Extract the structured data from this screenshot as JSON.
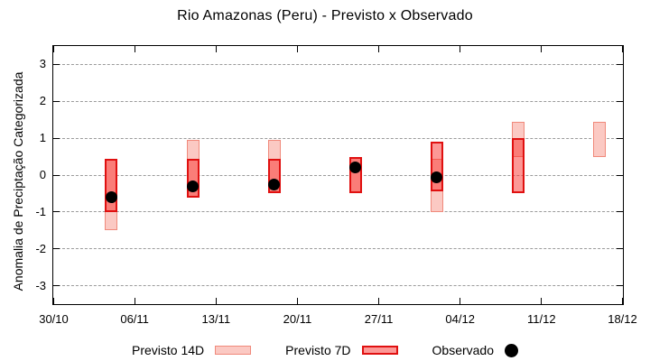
{
  "title": "Rio Amazonas (Peru) - Previsto x Observado",
  "chart_data": {
    "type": "bar",
    "subtype": "range-bars-with-scatter-overlay",
    "title": "Rio Amazonas (Peru) - Previsto x Observado",
    "xlabel": "",
    "ylabel": "Anomalia de Preciptação Categorizada",
    "ylim": [
      -3.5,
      3.5
    ],
    "ytick_values": [
      3,
      2,
      1,
      0,
      -1,
      -2,
      -3
    ],
    "ytick_labels": [
      "3",
      "2",
      "1",
      "0",
      "-1",
      "-2",
      "-3"
    ],
    "xtick_labels": [
      "30/10",
      "06/11",
      "13/11",
      "20/11",
      "27/11",
      "04/12",
      "11/12",
      "18/12"
    ],
    "xtick_days": [
      0,
      7,
      14,
      21,
      28,
      35,
      42,
      49
    ],
    "x_span_days": 49,
    "grid": "horizontal-dashed",
    "grid_color": "#9a9a9a",
    "axis_color": "#000000",
    "legend_position": "bottom-center",
    "series": [
      {
        "name": "Previsto 14D",
        "type": "range-bar",
        "fill_color": "#fbc9c3",
        "border_color": "#f0897b",
        "points": [
          {
            "date": "04/11",
            "day": 5,
            "hi": 0.45,
            "lo": -1.5
          },
          {
            "date": "11/11",
            "day": 12,
            "hi": 0.95,
            "lo": -0.6
          },
          {
            "date": "18/11",
            "day": 19,
            "hi": 0.95,
            "lo": -0.5
          },
          {
            "date": "25/11",
            "day": 26,
            "hi": 0.5,
            "lo": -0.5
          },
          {
            "date": "02/12",
            "day": 33,
            "hi": 0.45,
            "lo": -1.0
          },
          {
            "date": "09/12",
            "day": 40,
            "hi": 1.45,
            "lo": 0.5
          },
          {
            "date": "16/12",
            "day": 47,
            "hi": 1.45,
            "lo": 0.5
          }
        ]
      },
      {
        "name": "Previsto 7D",
        "type": "range-bar",
        "fill_color": "rgba(250,50,45,0.5)",
        "border_color": "#e01010",
        "points": [
          {
            "date": "04/11",
            "day": 5,
            "hi": 0.45,
            "lo": -1.0
          },
          {
            "date": "11/11",
            "day": 12,
            "hi": 0.45,
            "lo": -0.6
          },
          {
            "date": "18/11",
            "day": 19,
            "hi": 0.45,
            "lo": -0.5
          },
          {
            "date": "25/11",
            "day": 26,
            "hi": 0.5,
            "lo": -0.5
          },
          {
            "date": "02/12",
            "day": 33,
            "hi": 0.9,
            "lo": -0.45
          },
          {
            "date": "09/12",
            "day": 40,
            "hi": 1.0,
            "lo": -0.5
          }
        ]
      },
      {
        "name": "Observado",
        "type": "scatter",
        "color": "#000000",
        "points": [
          {
            "date": "04/11",
            "day": 5,
            "value": -0.6
          },
          {
            "date": "11/11",
            "day": 12,
            "value": -0.3
          },
          {
            "date": "18/11",
            "day": 19,
            "value": -0.25
          },
          {
            "date": "25/11",
            "day": 26,
            "value": 0.2
          },
          {
            "date": "02/12",
            "day": 33,
            "value": -0.05
          }
        ]
      }
    ]
  },
  "legend": {
    "items": [
      {
        "label": "Previsto 14D",
        "swatch": "light-pink-bar"
      },
      {
        "label": "Previsto 7D",
        "swatch": "red-bar"
      },
      {
        "label": "Observado",
        "swatch": "black-dot"
      }
    ]
  }
}
